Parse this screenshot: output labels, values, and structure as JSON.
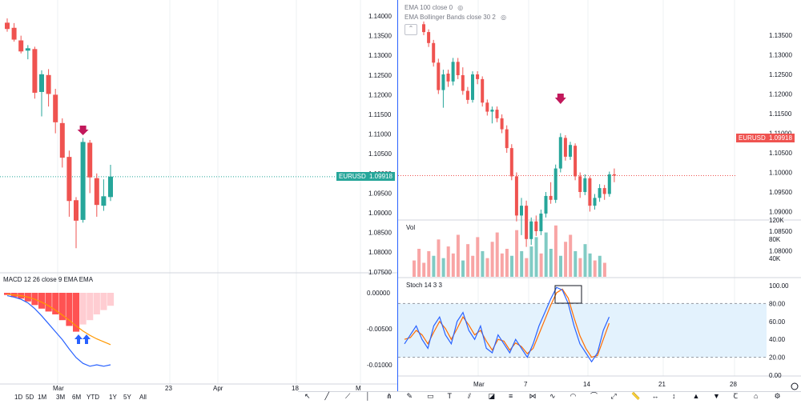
{
  "left_chart": {
    "price_axis": [
      "1.14000",
      "1.13500",
      "1.13000",
      "1.12500",
      "1.12000",
      "1.11500",
      "1.11000",
      "1.10500",
      "1.10000",
      "1.09500",
      "1.09000",
      "1.08500",
      "1.08000",
      "1.07500"
    ],
    "price_tag": {
      "label": "EURUSD",
      "value": "1.09918",
      "color": "#26a69a"
    },
    "macd": {
      "title": "MACD 12 26 close 9 EMA EMA",
      "axis": [
        "0.00000",
        "-0.00500",
        "-0.01000"
      ]
    },
    "time_axis": [
      "Mar",
      "23",
      "Apr",
      "18",
      "M"
    ],
    "timeframes": [
      "1D",
      "5D",
      "1M",
      "3M",
      "6M",
      "YTD",
      "1Y",
      "5Y",
      "All"
    ],
    "candles": [
      {
        "o": 1.1383,
        "h": 1.1394,
        "l": 1.136,
        "c": 1.1367
      },
      {
        "o": 1.137,
        "h": 1.1382,
        "l": 1.1335,
        "c": 1.134
      },
      {
        "o": 1.1338,
        "h": 1.135,
        "l": 1.1305,
        "c": 1.131
      },
      {
        "o": 1.1312,
        "h": 1.1326,
        "l": 1.129,
        "c": 1.1318
      },
      {
        "o": 1.1316,
        "h": 1.1322,
        "l": 1.119,
        "c": 1.1205
      },
      {
        "o": 1.1207,
        "h": 1.1262,
        "l": 1.1145,
        "c": 1.1252
      },
      {
        "o": 1.125,
        "h": 1.1265,
        "l": 1.117,
        "c": 1.1202
      },
      {
        "o": 1.12,
        "h": 1.1215,
        "l": 1.1102,
        "c": 1.113
      },
      {
        "o": 1.1128,
        "h": 1.114,
        "l": 1.1015,
        "c": 1.104
      },
      {
        "o": 1.1042,
        "h": 1.1058,
        "l": 1.089,
        "c": 1.093
      },
      {
        "o": 1.0932,
        "h": 1.094,
        "l": 1.081,
        "c": 1.088
      },
      {
        "o": 1.0882,
        "h": 1.109,
        "l": 1.0875,
        "c": 1.108
      },
      {
        "o": 1.1078,
        "h": 1.1085,
        "l": 1.095,
        "c": 1.099
      },
      {
        "o": 1.0988,
        "h": 1.1,
        "l": 1.089,
        "c": 1.092
      },
      {
        "o": 1.0918,
        "h": 1.0985,
        "l": 1.0905,
        "c": 1.0942
      },
      {
        "o": 1.094,
        "h": 1.1022,
        "l": 1.093,
        "c": 1.0992
      }
    ],
    "macd_hist": [
      -0.0003,
      -0.0006,
      -0.0008,
      -0.0012,
      -0.0017,
      -0.0022,
      -0.0026,
      -0.003,
      -0.0038,
      -0.0046,
      -0.0054,
      -0.0044,
      -0.0038,
      -0.003,
      -0.0024,
      -0.0018
    ],
    "macd_line": [
      -0.0004,
      -0.0006,
      -0.0009,
      -0.0014,
      -0.0022,
      -0.0032,
      -0.0043,
      -0.0054,
      -0.0065,
      -0.0078,
      -0.009,
      -0.0098,
      -0.0102,
      -0.01,
      -0.0102,
      -0.01
    ],
    "signal_line": [
      -0.0002,
      -0.0003,
      -0.0004,
      -0.0006,
      -0.0009,
      -0.0013,
      -0.0018,
      -0.0024,
      -0.0031,
      -0.0038,
      -0.0046,
      -0.0053,
      -0.0059,
      -0.0064,
      -0.0068,
      -0.0072
    ]
  },
  "right_chart": {
    "legend": [
      {
        "text": "EMA 100 close 0",
        "icon": "eye-off-icon"
      },
      {
        "text": "EMA Bollinger Bands close 30 2",
        "icon": "eye-off-icon"
      }
    ],
    "price_axis": [
      "1.13500",
      "1.13000",
      "1.12500",
      "1.12000",
      "1.11500",
      "1.11000",
      "1.10500",
      "1.10000",
      "1.09500",
      "1.09000",
      "1.08500",
      "1.08000"
    ],
    "price_tag": {
      "label": "EURUSD",
      "value": "1.09918",
      "color": "#ef5350"
    },
    "volume": {
      "title": "Vol",
      "axis": [
        "120K",
        "80K",
        "40K"
      ]
    },
    "stoch": {
      "title": "Stoch 14 3 3",
      "axis": [
        "100.00",
        "80.00",
        "60.00",
        "40.00",
        "20.00",
        "0.00"
      ]
    },
    "time_axis": [
      "Mar",
      "7",
      "14",
      "21",
      "28"
    ],
    "candles": [
      {
        "o": 1.1378,
        "h": 1.1385,
        "l": 1.135,
        "c": 1.1358
      },
      {
        "o": 1.1358,
        "h": 1.1365,
        "l": 1.132,
        "c": 1.133
      },
      {
        "o": 1.133,
        "h": 1.1338,
        "l": 1.127,
        "c": 1.128
      },
      {
        "o": 1.128,
        "h": 1.129,
        "l": 1.12,
        "c": 1.121
      },
      {
        "o": 1.121,
        "h": 1.1262,
        "l": 1.1165,
        "c": 1.125
      },
      {
        "o": 1.1252,
        "h": 1.1262,
        "l": 1.1218,
        "c": 1.1232
      },
      {
        "o": 1.1232,
        "h": 1.1292,
        "l": 1.1222,
        "c": 1.1282
      },
      {
        "o": 1.1282,
        "h": 1.1292,
        "l": 1.1238,
        "c": 1.1248
      },
      {
        "o": 1.1248,
        "h": 1.1268,
        "l": 1.1198,
        "c": 1.1208
      },
      {
        "o": 1.1208,
        "h": 1.1218,
        "l": 1.1175,
        "c": 1.1185
      },
      {
        "o": 1.1185,
        "h": 1.1258,
        "l": 1.1178,
        "c": 1.125
      },
      {
        "o": 1.125,
        "h": 1.1258,
        "l": 1.1225,
        "c": 1.1238
      },
      {
        "o": 1.1238,
        "h": 1.1245,
        "l": 1.1168,
        "c": 1.1178
      },
      {
        "o": 1.1178,
        "h": 1.1186,
        "l": 1.1145,
        "c": 1.1155
      },
      {
        "o": 1.1155,
        "h": 1.1168,
        "l": 1.1125,
        "c": 1.116
      },
      {
        "o": 1.116,
        "h": 1.1168,
        "l": 1.1128,
        "c": 1.1138
      },
      {
        "o": 1.1138,
        "h": 1.1148,
        "l": 1.11,
        "c": 1.111
      },
      {
        "o": 1.111,
        "h": 1.112,
        "l": 1.105,
        "c": 1.1062
      },
      {
        "o": 1.1062,
        "h": 1.1072,
        "l": 1.098,
        "c": 1.099
      },
      {
        "o": 1.099,
        "h": 1.1,
        "l": 1.0875,
        "c": 1.089
      },
      {
        "o": 1.089,
        "h": 1.0935,
        "l": 1.084,
        "c": 1.0915
      },
      {
        "o": 1.0915,
        "h": 1.0928,
        "l": 1.081,
        "c": 1.083
      },
      {
        "o": 1.083,
        "h": 1.0885,
        "l": 1.0815,
        "c": 1.0875
      },
      {
        "o": 1.0875,
        "h": 1.089,
        "l": 1.0838,
        "c": 1.085
      },
      {
        "o": 1.085,
        "h": 1.0905,
        "l": 1.084,
        "c": 1.0895
      },
      {
        "o": 1.0895,
        "h": 1.095,
        "l": 1.0885,
        "c": 1.094
      },
      {
        "o": 1.094,
        "h": 1.0975,
        "l": 1.092,
        "c": 1.093
      },
      {
        "o": 1.093,
        "h": 1.102,
        "l": 1.0922,
        "c": 1.101
      },
      {
        "o": 1.101,
        "h": 1.11,
        "l": 1.1,
        "c": 1.109
      },
      {
        "o": 1.1088,
        "h": 1.1095,
        "l": 1.103,
        "c": 1.104
      },
      {
        "o": 1.104,
        "h": 1.1078,
        "l": 1.1032,
        "c": 1.107
      },
      {
        "o": 1.1068,
        "h": 1.1074,
        "l": 1.098,
        "c": 1.099
      },
      {
        "o": 1.099,
        "h": 1.1,
        "l": 1.0935,
        "c": 1.095
      },
      {
        "o": 1.095,
        "h": 1.0995,
        "l": 1.0942,
        "c": 1.0985
      },
      {
        "o": 1.0985,
        "h": 1.099,
        "l": 1.09,
        "c": 1.0915
      },
      {
        "o": 1.0915,
        "h": 1.0945,
        "l": 1.0905,
        "c": 1.0935
      },
      {
        "o": 1.0935,
        "h": 1.097,
        "l": 1.0925,
        "c": 1.096
      },
      {
        "o": 1.096,
        "h": 1.0968,
        "l": 1.093,
        "c": 1.0945
      },
      {
        "o": 1.0945,
        "h": 1.1002,
        "l": 1.0938,
        "c": 1.0995
      },
      {
        "o": 1.0995,
        "h": 1.101,
        "l": 1.0975,
        "c": 1.0992
      }
    ],
    "volumes": [
      35,
      60,
      30,
      55,
      45,
      80,
      40,
      65,
      50,
      90,
      35,
      70,
      45,
      85,
      55,
      40,
      75,
      95,
      50,
      60,
      45,
      100,
      55,
      40,
      65,
      85,
      50,
      95,
      60,
      110,
      45,
      75,
      90,
      55,
      40,
      70,
      50,
      35,
      45,
      30
    ],
    "stoch_k": [
      35,
      45,
      55,
      40,
      30,
      55,
      65,
      45,
      35,
      60,
      70,
      50,
      40,
      55,
      30,
      25,
      45,
      35,
      25,
      40,
      30,
      20,
      35,
      55,
      70,
      85,
      98,
      95,
      80,
      55,
      35,
      25,
      15,
      25,
      50,
      65
    ],
    "stoch_d": [
      40,
      42,
      50,
      45,
      35,
      48,
      60,
      52,
      40,
      52,
      65,
      56,
      45,
      50,
      38,
      28,
      40,
      38,
      28,
      36,
      32,
      24,
      30,
      46,
      62,
      78,
      92,
      96,
      86,
      64,
      44,
      30,
      20,
      22,
      40,
      58
    ]
  },
  "bottom_toolbar_icons": [
    "cursor-icon",
    "trend-line-icon",
    "ray-icon",
    "vertical-line-icon",
    "pitchfork-icon",
    "brush-icon",
    "rectangle-icon",
    "text-icon",
    "channel-icon",
    "gann-icon",
    "fib-icon",
    "xabcd-icon",
    "wave-icon",
    "arc-icon",
    "curve-icon",
    "projection-icon",
    "ruler-icon",
    "date-range-icon",
    "price-range-icon",
    "long-position-icon",
    "short-position-icon",
    "text-tool-icon",
    "magnet-icon",
    "settings-icon"
  ]
}
